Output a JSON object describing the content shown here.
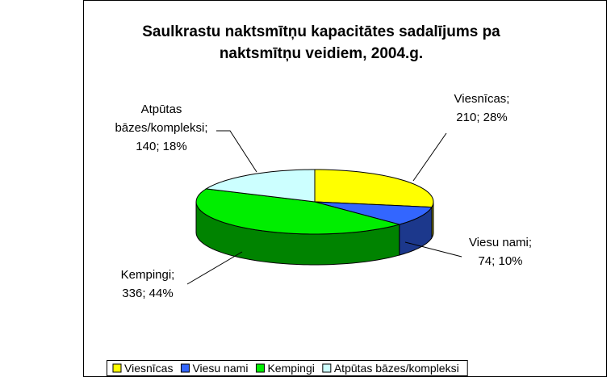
{
  "chart_data": {
    "type": "pie",
    "title": "Saulkrastu naktsmītņu kapacitātes sadalījums pa naktsmītņu veidiem, 2004.g.",
    "categories": [
      "Viesnīcas",
      "Viesu nami",
      "Kempingi",
      "Atpūtas bāzes/kompleksi"
    ],
    "values": [
      210,
      74,
      336,
      140
    ],
    "value_labels": [
      "Viesnīcas;\n210; 28%",
      "Viesu nami;\n74; 10%",
      "Kempingi;\n336; 44%",
      "Atpūtas\nbāzes/kompleksi;\n140; 18%"
    ],
    "colors": [
      "#ffff00",
      "#3366ff",
      "#00ee00",
      "#ccffff"
    ],
    "legend": "bottom"
  }
}
